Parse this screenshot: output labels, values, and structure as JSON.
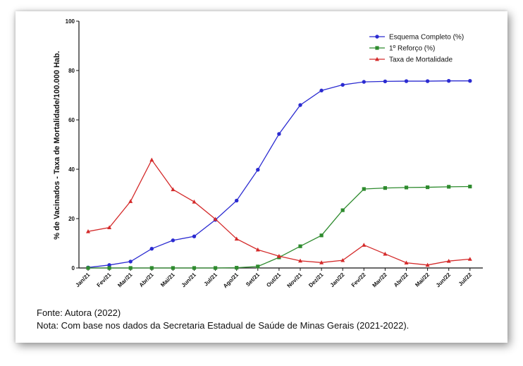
{
  "chart_data": {
    "type": "line",
    "title": "",
    "ylabel": "% de Vacinados - Taxa de Mortalidade/100.000 Hab.",
    "xlabel": "",
    "ylim": [
      0,
      100
    ],
    "yticks": [
      "0",
      "20",
      "40",
      "60",
      "80",
      "100"
    ],
    "categories": [
      "Jan/21",
      "Fev/21",
      "Mar/21",
      "Abr/21",
      "Mai/21",
      "Jun/21",
      "Jul/21",
      "Ago/21",
      "Set/21",
      "Out/21",
      "Nov/21",
      "Dez/21",
      "Jan/22",
      "Fev/22",
      "Mar/22",
      "Abr/22",
      "Mai/22",
      "Jun/22",
      "Jul/22"
    ],
    "legend_position": "top-right",
    "grid": false,
    "series": [
      {
        "name": "Esquema Completo (%)",
        "color": "#2b2bd1",
        "marker": "circle",
        "values": [
          0.2,
          1.2,
          2.6,
          7.8,
          11.2,
          12.8,
          19.5,
          27.3,
          39.8,
          54.3,
          66.0,
          71.9,
          74.2,
          75.4,
          75.6,
          75.7,
          75.7,
          75.8,
          75.8
        ]
      },
      {
        "name": "1º Reforço (%)",
        "color": "#2e8b2e",
        "marker": "square",
        "values": [
          0,
          0,
          0,
          0,
          0,
          0,
          0,
          0.1,
          0.6,
          4.3,
          8.8,
          13.2,
          23.4,
          32.0,
          32.4,
          32.6,
          32.7,
          32.9,
          33.0
        ]
      },
      {
        "name": "Taxa de Mortalidade",
        "color": "#d42a2a",
        "marker": "triangle",
        "values": [
          14.8,
          16.4,
          27.0,
          43.8,
          31.8,
          26.8,
          19.8,
          11.8,
          7.4,
          4.8,
          2.9,
          2.2,
          3.1,
          9.3,
          5.7,
          2.1,
          1.2,
          2.8,
          3.6
        ]
      }
    ]
  },
  "source": {
    "fonte": "Fonte: Autora (2022)",
    "nota": "Nota: Com base nos dados da Secretaria Estadual de Saúde de Minas Gerais (2021-2022)."
  }
}
